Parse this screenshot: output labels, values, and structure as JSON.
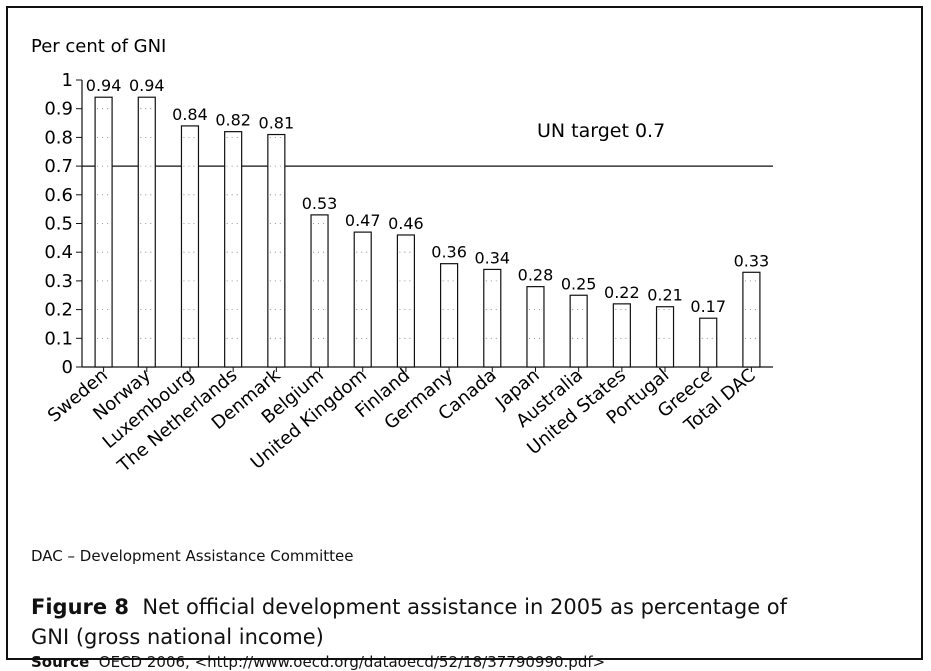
{
  "chart_data": {
    "type": "bar",
    "ylabel": "Per cent of GNI",
    "ylim": [
      0,
      1
    ],
    "yticks": [
      "0",
      "0.1",
      "0.2",
      "0.3",
      "0.4",
      "0.5",
      "0.6",
      "0.7",
      "0.8",
      "0.9",
      "1"
    ],
    "categories": [
      "Sweden",
      "Norway",
      "Luxembourg",
      "The Netherlands",
      "Denmark",
      "Belgium",
      "United Kingdom",
      "Finland",
      "Germany",
      "Canada",
      "Japan",
      "Australia",
      "United States",
      "Portugal",
      "Greece",
      "Total DAC"
    ],
    "values": [
      0.94,
      0.94,
      0.84,
      0.82,
      0.81,
      0.53,
      0.47,
      0.46,
      0.36,
      0.34,
      0.28,
      0.25,
      0.22,
      0.21,
      0.17,
      0.33
    ],
    "value_labels": [
      "0.94",
      "0.94",
      "0.84",
      "0.82",
      "0.81",
      "0.53",
      "0.47",
      "0.46",
      "0.36",
      "0.34",
      "0.28",
      "0.25",
      "0.22",
      "0.21",
      "0.17",
      "0.33"
    ],
    "reference_line": {
      "value": 0.7,
      "label": "UN target 0.7"
    },
    "grid": false
  },
  "note": "DAC – Development Assistance Committee",
  "caption": {
    "figure_label": "Figure 8",
    "text": "Net official development assistance  in 2005 as  percentage of GNI (gross national income)"
  },
  "source": {
    "label": "Source",
    "text": "OECD 2006, <http://www.oecd.org/dataoecd/52/18/37790990.pdf>"
  }
}
